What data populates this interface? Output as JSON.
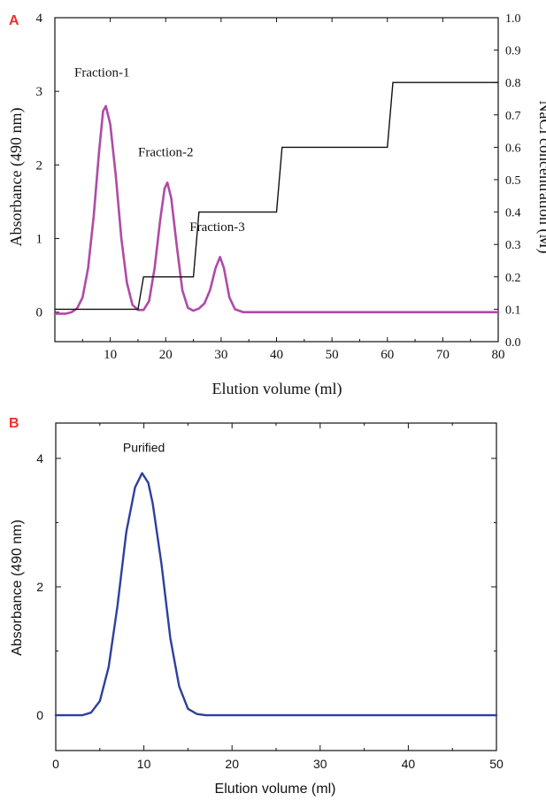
{
  "chart_data": [
    {
      "panel_label": "A",
      "type": "line",
      "xlabel": "Elution volume (ml)",
      "ylabel": "Absorbance (490 nm)",
      "y2label": "NaCl concentration (M)",
      "xlim": [
        0,
        80
      ],
      "ylim": [
        -0.4,
        4
      ],
      "y2lim": [
        0.0,
        1.0
      ],
      "x_ticks": [
        10,
        20,
        30,
        40,
        50,
        60,
        70,
        80
      ],
      "y_ticks": [
        0,
        1,
        2,
        3,
        4
      ],
      "y2_ticks": [
        0.0,
        0.1,
        0.2,
        0.3,
        0.4,
        0.5,
        0.6,
        0.7,
        0.8,
        0.9,
        1.0
      ],
      "grid": false,
      "colors": {
        "absorbance": "#b04aa6",
        "nacl": "#111111"
      },
      "annotations": [
        {
          "text": "Fraction-1",
          "x": 8.5,
          "y": 3.2
        },
        {
          "text": "Fraction-2",
          "x": 20,
          "y": 2.12
        },
        {
          "text": "Fraction-3",
          "x": 29.3,
          "y": 1.1
        }
      ],
      "series": [
        {
          "axis": "left",
          "points": [
            [
              0,
              -0.02
            ],
            [
              2,
              -0.02
            ],
            [
              3,
              0.0
            ],
            [
              4,
              0.05
            ],
            [
              5,
              0.2
            ],
            [
              6,
              0.6
            ],
            [
              7,
              1.3
            ],
            [
              8,
              2.2
            ],
            [
              8.7,
              2.73
            ],
            [
              9.2,
              2.8
            ],
            [
              10,
              2.55
            ],
            [
              11,
              1.85
            ],
            [
              12,
              1.0
            ],
            [
              13,
              0.4
            ],
            [
              14,
              0.1
            ],
            [
              15,
              0.03
            ],
            [
              16,
              0.03
            ],
            [
              17,
              0.15
            ],
            [
              18,
              0.6
            ],
            [
              19,
              1.25
            ],
            [
              19.8,
              1.68
            ],
            [
              20.3,
              1.76
            ],
            [
              21,
              1.55
            ],
            [
              22,
              0.9
            ],
            [
              23,
              0.3
            ],
            [
              24,
              0.06
            ],
            [
              25,
              0.02
            ],
            [
              26,
              0.05
            ],
            [
              27,
              0.12
            ],
            [
              28,
              0.3
            ],
            [
              29,
              0.6
            ],
            [
              29.8,
              0.75
            ],
            [
              30.5,
              0.6
            ],
            [
              31.5,
              0.2
            ],
            [
              32.5,
              0.04
            ],
            [
              34,
              0.0
            ],
            [
              40,
              0.0
            ],
            [
              50,
              0.0
            ],
            [
              60,
              0.0
            ],
            [
              70,
              0.0
            ],
            [
              80,
              0.0
            ]
          ]
        },
        {
          "axis": "right",
          "points": [
            [
              0,
              0.1
            ],
            [
              15,
              0.1
            ],
            [
              16,
              0.2
            ],
            [
              25,
              0.2
            ],
            [
              26,
              0.4
            ],
            [
              40,
              0.4
            ],
            [
              41,
              0.6
            ],
            [
              60,
              0.6
            ],
            [
              61,
              0.8
            ],
            [
              80,
              0.8
            ]
          ]
        }
      ]
    },
    {
      "panel_label": "B",
      "type": "line",
      "xlabel": "Elution volume (ml)",
      "ylabel": "Absorbance (490 nm)",
      "xlim": [
        0,
        50
      ],
      "ylim": [
        -0.55,
        4.55
      ],
      "x_ticks": [
        0,
        10,
        20,
        30,
        40,
        50
      ],
      "y_ticks": [
        0,
        2,
        4
      ],
      "grid": false,
      "colors": {
        "absorbance": "#2e3f9e"
      },
      "annotations": [
        {
          "text": "Purified",
          "x": 10,
          "y": 4.1
        }
      ],
      "series": [
        {
          "points": [
            [
              0,
              0.0
            ],
            [
              3,
              0.0
            ],
            [
              4,
              0.04
            ],
            [
              5,
              0.22
            ],
            [
              6,
              0.75
            ],
            [
              7,
              1.7
            ],
            [
              8,
              2.85
            ],
            [
              9,
              3.55
            ],
            [
              9.8,
              3.77
            ],
            [
              10.5,
              3.62
            ],
            [
              11,
              3.3
            ],
            [
              12,
              2.35
            ],
            [
              13,
              1.2
            ],
            [
              14,
              0.45
            ],
            [
              15,
              0.1
            ],
            [
              16,
              0.02
            ],
            [
              17,
              0.0
            ],
            [
              20,
              0.0
            ],
            [
              30,
              0.0
            ],
            [
              40,
              0.0
            ],
            [
              50,
              0.0
            ]
          ]
        }
      ]
    }
  ]
}
